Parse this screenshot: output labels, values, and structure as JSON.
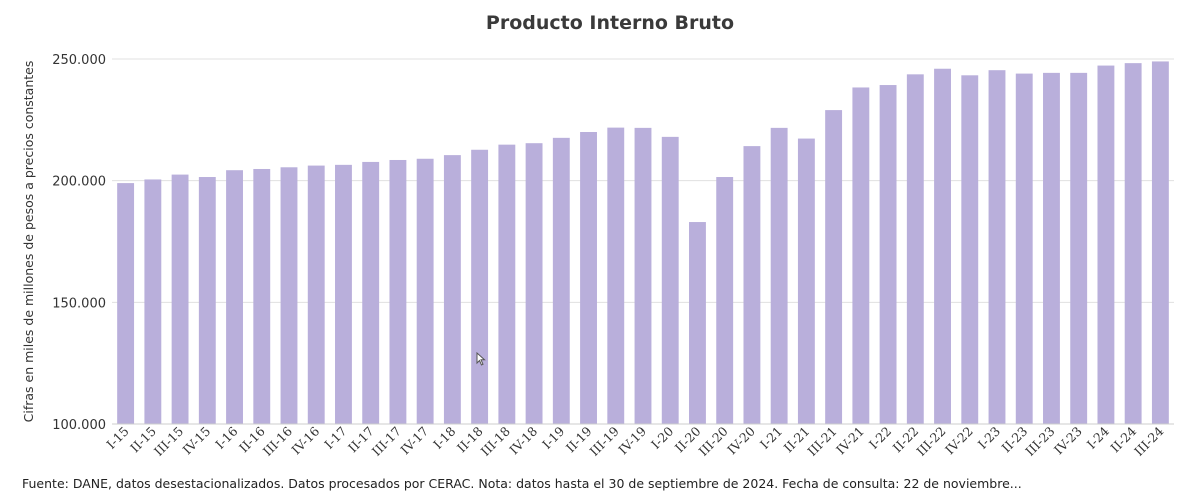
{
  "chart_data": {
    "type": "bar",
    "title": "Producto Interno Bruto",
    "ylabel": "Cifras en miles de millones de pesos a precios constantes",
    "xlabel": "",
    "ylim": [
      100000,
      250000
    ],
    "yticks": [
      100000,
      150000,
      200000,
      250000
    ],
    "ytick_labels": [
      "100.000",
      "150.000",
      "200.000",
      "250.000"
    ],
    "grid": true,
    "bar_color": "#b9afdb",
    "categories": [
      "I-15",
      "II-15",
      "III-15",
      "IV-15",
      "I-16",
      "II-16",
      "III-16",
      "IV-16",
      "I-17",
      "II-17",
      "III-17",
      "IV-17",
      "I-18",
      "II-18",
      "III-18",
      "IV-18",
      "I-19",
      "II-19",
      "III-19",
      "IV-19",
      "I-20",
      "II-20",
      "III-20",
      "IV-20",
      "I-21",
      "II-21",
      "III-21",
      "IV-21",
      "I-22",
      "II-22",
      "III-22",
      "IV-22",
      "I-23",
      "II-23",
      "III-23",
      "IV-23",
      "I-24",
      "II-24",
      "III-24"
    ],
    "values": [
      199000,
      200500,
      202500,
      201500,
      204300,
      204800,
      205500,
      206200,
      206500,
      207700,
      208500,
      209000,
      210500,
      212700,
      214800,
      215400,
      217600,
      220000,
      221800,
      221700,
      218000,
      183000,
      201500,
      214200,
      221700,
      217300,
      229000,
      238300,
      239300,
      243700,
      246000,
      243300,
      245400,
      244000,
      244300,
      244300,
      247300,
      248300,
      249000
    ]
  },
  "source_note": "Fuente: DANE, datos desestacionalizados. Datos procesados por CERAC. Nota: datos hasta el 30 de septiembre de 2024. Fecha de consulta: 22 de noviembre..."
}
